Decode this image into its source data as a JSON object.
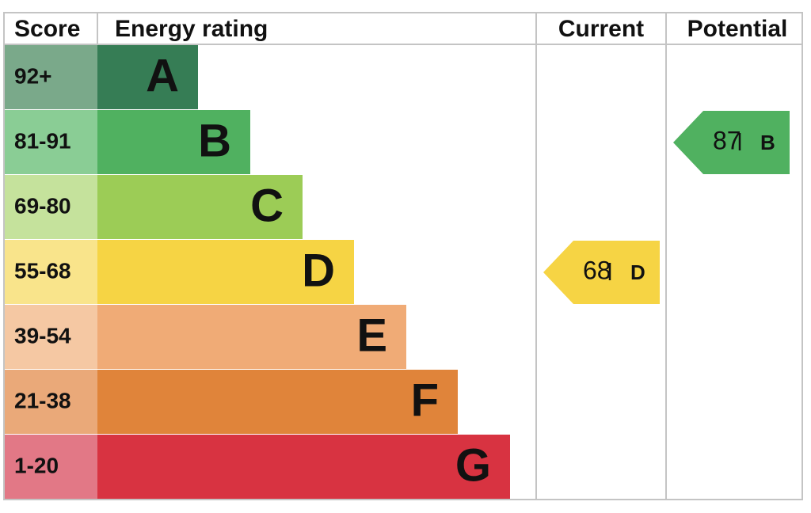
{
  "header": {
    "score": "Score",
    "rating": "Energy rating",
    "current": "Current",
    "potential": "Potential"
  },
  "bands": [
    {
      "score": "92+",
      "letter": "A",
      "color": "#367d55",
      "score_color": "#7aa98a"
    },
    {
      "score": "81-91",
      "letter": "B",
      "color": "#50b160",
      "score_color": "#8acd95"
    },
    {
      "score": "69-80",
      "letter": "C",
      "color": "#9ccc56",
      "score_color": "#c5e29c"
    },
    {
      "score": "55-68",
      "letter": "D",
      "color": "#f6d444",
      "score_color": "#f9e48b"
    },
    {
      "score": "39-54",
      "letter": "E",
      "color": "#f0ab76",
      "score_color": "#f5c8a3"
    },
    {
      "score": "21-38",
      "letter": "F",
      "color": "#e0843a",
      "score_color": "#eaa979"
    },
    {
      "score": "1-20",
      "letter": "G",
      "color": "#d83341",
      "score_color": "#e27886"
    }
  ],
  "current": {
    "value": 68,
    "letter": "D"
  },
  "potential": {
    "value": 87,
    "letter": "B"
  }
}
